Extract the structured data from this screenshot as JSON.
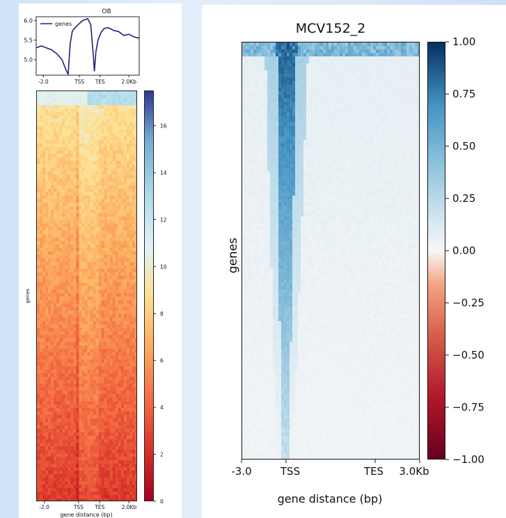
{
  "chart_data": [
    {
      "type": "line",
      "title": "OB",
      "xlabel": "",
      "ylabel": "",
      "legend": {
        "entries": [
          "genes"
        ],
        "placement": "top-left"
      },
      "x_ticks": [
        "-2.0",
        "TSS",
        "TES",
        "2.0Kb"
      ],
      "y_ticks": [
        "5.0",
        "5.5",
        "6.0"
      ],
      "ylim": [
        4.6,
        6.1
      ],
      "series": [
        {
          "name": "genes",
          "color": "#1f1f7a",
          "x": [
            0,
            0.05,
            0.1,
            0.15,
            0.2,
            0.25,
            0.28,
            0.31,
            0.33,
            0.35,
            0.37,
            0.4,
            0.45,
            0.5,
            0.53,
            0.555,
            0.565,
            0.58,
            0.6,
            0.63,
            0.66,
            0.7,
            0.75,
            0.8,
            0.85,
            0.9,
            0.95,
            1.0
          ],
          "values": [
            5.3,
            5.35,
            5.3,
            5.25,
            5.15,
            5.0,
            4.8,
            4.62,
            5.4,
            5.72,
            5.8,
            5.88,
            6.0,
            6.05,
            5.9,
            5.1,
            4.7,
            5.2,
            5.5,
            5.7,
            5.8,
            5.82,
            5.75,
            5.72,
            5.62,
            5.65,
            5.58,
            5.55
          ]
        }
      ]
    },
    {
      "type": "heatmap",
      "title": "",
      "xlabel": "gene distance (bp)",
      "ylabel": "genes",
      "x_ticks": [
        "-2.0",
        "TSS",
        "TES",
        "2.0Kb"
      ],
      "colormap": "RdYlBu",
      "colorbar_ticks": [
        "0",
        "2",
        "4",
        "6",
        "8",
        "10",
        "12",
        "14",
        "16"
      ],
      "colorbar_range": [
        0,
        17.5
      ]
    },
    {
      "type": "heatmap",
      "title": "MCV152_2",
      "xlabel": "gene distance (bp)",
      "ylabel": "genes",
      "x_ticks": [
        "-3.0",
        "TSS",
        "TES",
        "3.0Kb"
      ],
      "colormap": "RdBu",
      "colorbar_ticks": [
        "1.00",
        "0.75",
        "0.50",
        "0.25",
        "0.00",
        "−0.25",
        "−0.50",
        "−0.75",
        "−1.00"
      ],
      "colorbar_range": [
        -1.0,
        1.0
      ]
    }
  ]
}
